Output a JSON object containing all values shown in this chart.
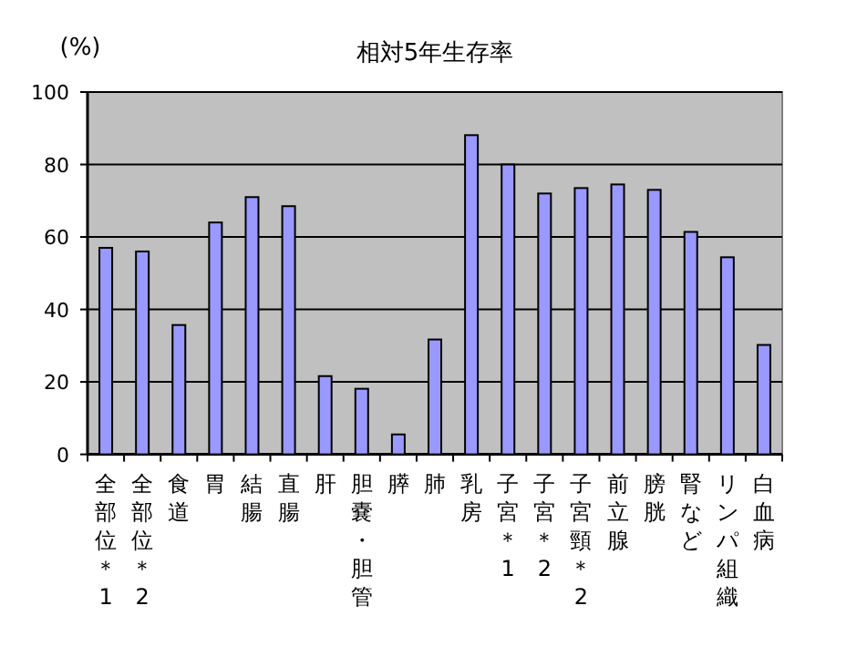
{
  "chart_data": {
    "type": "bar",
    "title": "相対5年生存率",
    "ylabel": "(%)",
    "categories": [
      "全部位＊1",
      "全部位＊2",
      "食道",
      "胃",
      "結腸",
      "直腸",
      "肝",
      "胆嚢・胆管",
      "膵",
      "肺",
      "乳房",
      "子宮＊1",
      "子宮＊2",
      "子宮頸＊2",
      "前立腺",
      "膀胱",
      "腎など",
      "リンパ組織",
      "白血病"
    ],
    "values": [
      57,
      56,
      35.7,
      64,
      71,
      68.5,
      21.6,
      18.1,
      5.5,
      31.7,
      88.1,
      80,
      72,
      73.5,
      74.5,
      73,
      61.4,
      54.4,
      30.2
    ],
    "color": "#9999ff",
    "ylim": [
      0,
      100
    ],
    "yticks": [
      0,
      20,
      40,
      60,
      80,
      100
    ],
    "grid": "y"
  }
}
